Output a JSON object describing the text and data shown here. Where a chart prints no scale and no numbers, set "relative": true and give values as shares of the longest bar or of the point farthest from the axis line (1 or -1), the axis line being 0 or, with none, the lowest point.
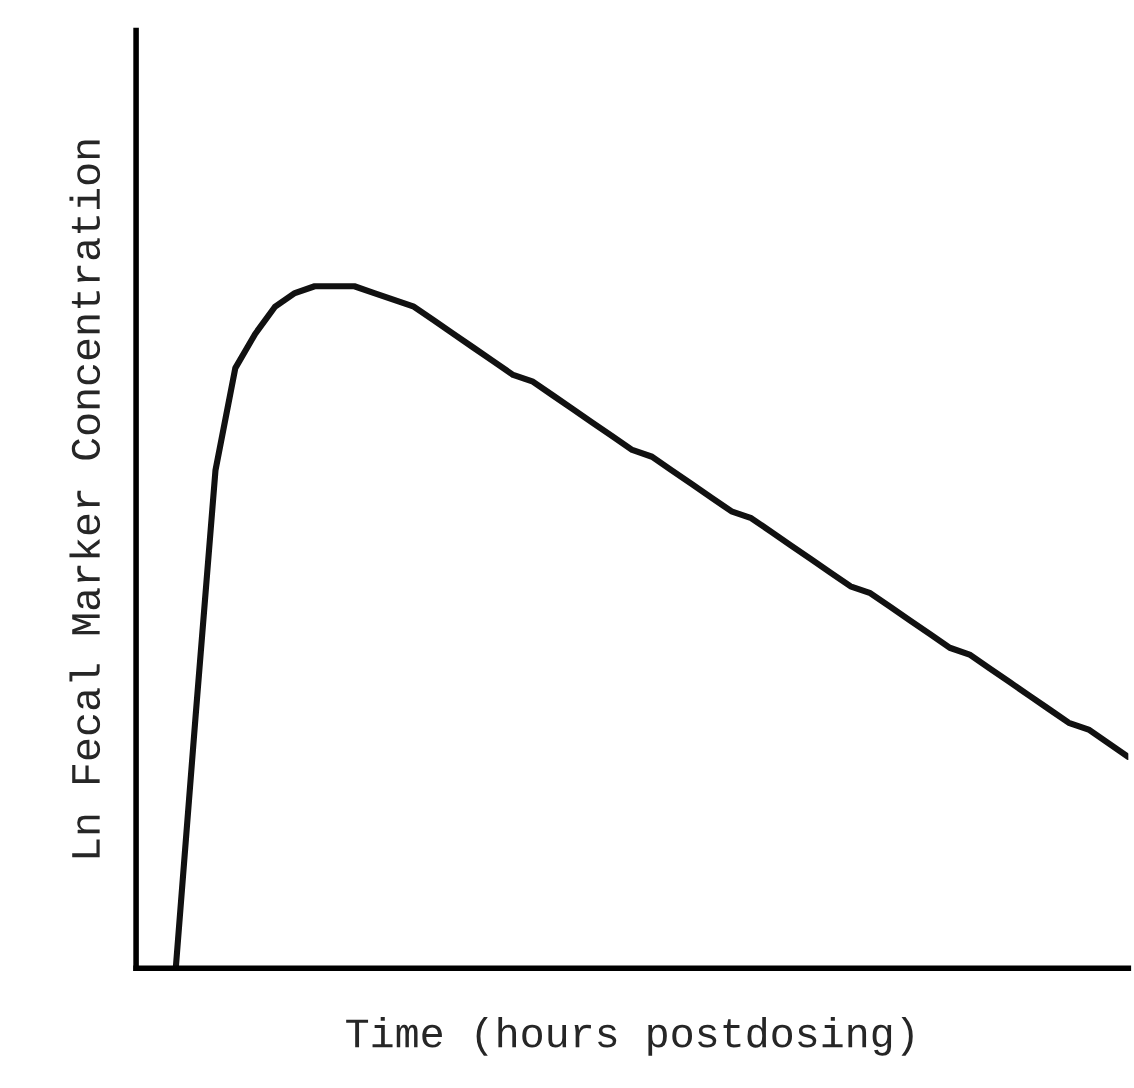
{
  "chart_data": {
    "type": "line",
    "relative": true,
    "xlabel": "Time (hours postdosing)",
    "ylabel": "Ln Fecal Marker Concentration",
    "categories": [
      null,
      null,
      null,
      null,
      null,
      null,
      null,
      null,
      null,
      null,
      null,
      null,
      null,
      null,
      null,
      null,
      null,
      null,
      null,
      null,
      null,
      null,
      null,
      null,
      null,
      null,
      null,
      null,
      null,
      null,
      null,
      null,
      null,
      null,
      null,
      null,
      null,
      null,
      null,
      null,
      null,
      null,
      null,
      null,
      null,
      null,
      null,
      null,
      null,
      null,
      null
    ],
    "series": [
      {
        "color": "#111111",
        "values": [
          null,
          null,
          0,
          0.37,
          0.73,
          0.88,
          0.93,
          0.97,
          0.99,
          1.0,
          1.0,
          1.0,
          0.99,
          0.98,
          0.97,
          0.95,
          0.93,
          0.91,
          0.89,
          0.87,
          0.86,
          0.84,
          0.82,
          0.8,
          0.78,
          0.76,
          0.75,
          0.73,
          0.71,
          0.69,
          0.67,
          0.66,
          0.64,
          0.62,
          0.6,
          0.58,
          0.56,
          0.55,
          0.53,
          0.51,
          0.49,
          0.47,
          0.46,
          0.44,
          0.42,
          0.4,
          0.38,
          0.36,
          0.35,
          0.33,
          0.31
        ]
      }
    ],
    "grid": false,
    "legend": false,
    "marker": "none",
    "line_style": "solid"
  }
}
